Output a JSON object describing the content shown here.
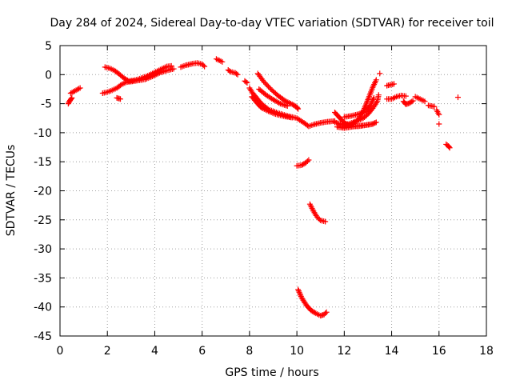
{
  "chart_data": {
    "type": "scatter",
    "title": "Day 284 of 2024, Sidereal Day-to-day VTEC variation (SDTVAR) for receiver toil",
    "xlabel": "GPS time / hours",
    "ylabel": "SDTVAR / TECUs",
    "xlim": [
      0,
      18
    ],
    "ylim": [
      -45,
      5
    ],
    "xticks": [
      0,
      2,
      4,
      6,
      8,
      10,
      12,
      14,
      16,
      18
    ],
    "yticks": [
      5,
      0,
      -5,
      -10,
      -15,
      -20,
      -25,
      -30,
      -35,
      -40,
      -45
    ],
    "grid": true,
    "marker": "+",
    "series_color": "#ff0000",
    "tracks": [
      {
        "name": "s1",
        "points": [
          [
            0.35,
            -5.0
          ],
          [
            0.4,
            -4.6
          ],
          [
            0.45,
            -4.3
          ],
          [
            0.5,
            -4.0
          ]
        ]
      },
      {
        "name": "s2",
        "points": [
          [
            0.45,
            -3.2
          ],
          [
            0.85,
            -2.3
          ]
        ]
      },
      {
        "name": "s3",
        "points": [
          [
            1.8,
            -3.2
          ],
          [
            2.0,
            -3.0
          ],
          [
            2.2,
            -2.7
          ],
          [
            2.4,
            -2.3
          ],
          [
            2.6,
            -1.7
          ],
          [
            2.8,
            -1.3
          ],
          [
            3.0,
            -1.2
          ],
          [
            3.3,
            -1.0
          ],
          [
            3.6,
            -0.8
          ],
          [
            3.9,
            -0.3
          ],
          [
            4.2,
            0.3
          ],
          [
            4.5,
            0.7
          ],
          [
            4.8,
            1.0
          ]
        ]
      },
      {
        "name": "s4",
        "points": [
          [
            1.9,
            1.3
          ],
          [
            2.1,
            1.1
          ],
          [
            2.3,
            0.7
          ],
          [
            2.5,
            0.1
          ],
          [
            2.7,
            -0.6
          ],
          [
            2.9,
            -1.1
          ],
          [
            3.1,
            -1.0
          ],
          [
            3.3,
            -0.8
          ],
          [
            3.5,
            -0.5
          ],
          [
            3.7,
            -0.2
          ],
          [
            3.9,
            0.2
          ],
          [
            4.1,
            0.6
          ],
          [
            4.3,
            1.0
          ],
          [
            4.5,
            1.4
          ],
          [
            4.7,
            1.5
          ]
        ]
      },
      {
        "name": "s5",
        "points": [
          [
            2.4,
            -4.0
          ],
          [
            2.55,
            -4.2
          ]
        ]
      },
      {
        "name": "s6",
        "points": [
          [
            5.1,
            1.3
          ],
          [
            5.3,
            1.6
          ],
          [
            5.6,
            1.9
          ],
          [
            5.8,
            2.0
          ],
          [
            6.0,
            1.8
          ],
          [
            6.1,
            1.4
          ]
        ]
      },
      {
        "name": "s7",
        "points": [
          [
            6.6,
            2.7
          ],
          [
            6.85,
            2.2
          ]
        ]
      },
      {
        "name": "s8",
        "points": [
          [
            7.1,
            0.8
          ],
          [
            7.2,
            0.5
          ],
          [
            7.4,
            0.3
          ],
          [
            7.5,
            0.0
          ]
        ]
      },
      {
        "name": "s9",
        "points": [
          [
            7.8,
            -1.1
          ],
          [
            7.9,
            -1.4
          ]
        ]
      },
      {
        "name": "s10",
        "points": [
          [
            8.0,
            -2.3
          ],
          [
            8.1,
            -3.0
          ],
          [
            8.3,
            -4.0
          ],
          [
            8.5,
            -5.0
          ],
          [
            8.8,
            -6.0
          ],
          [
            9.2,
            -6.6
          ],
          [
            9.6,
            -7.1
          ],
          [
            10.0,
            -7.5
          ],
          [
            10.3,
            -8.3
          ],
          [
            10.5,
            -8.9
          ],
          [
            10.7,
            -8.6
          ],
          [
            11.0,
            -8.3
          ],
          [
            11.3,
            -8.1
          ],
          [
            11.6,
            -8.0
          ]
        ]
      },
      {
        "name": "s11",
        "points": [
          [
            8.1,
            -3.8
          ],
          [
            8.3,
            -4.8
          ],
          [
            8.5,
            -5.7
          ],
          [
            8.8,
            -6.3
          ],
          [
            9.1,
            -6.8
          ],
          [
            9.5,
            -7.2
          ],
          [
            9.8,
            -7.4
          ]
        ]
      },
      {
        "name": "s12",
        "points": [
          [
            8.35,
            0.2
          ],
          [
            8.6,
            -1.2
          ],
          [
            8.9,
            -2.5
          ],
          [
            9.2,
            -3.6
          ],
          [
            9.5,
            -4.5
          ],
          [
            9.8,
            -5.1
          ],
          [
            10.0,
            -5.6
          ],
          [
            10.05,
            -5.9
          ]
        ]
      },
      {
        "name": "s13",
        "points": [
          [
            8.4,
            -2.5
          ],
          [
            8.7,
            -3.5
          ],
          [
            9.0,
            -4.3
          ],
          [
            9.3,
            -5.0
          ],
          [
            9.6,
            -5.4
          ]
        ]
      },
      {
        "name": "s14",
        "points": [
          [
            10.0,
            -15.7
          ],
          [
            10.2,
            -15.6
          ],
          [
            10.4,
            -15.1
          ],
          [
            10.5,
            -14.7
          ]
        ]
      },
      {
        "name": "s15",
        "points": [
          [
            10.55,
            -22.3
          ],
          [
            10.7,
            -23.5
          ],
          [
            10.85,
            -24.5
          ],
          [
            11.0,
            -25.1
          ],
          [
            11.2,
            -25.3
          ]
        ]
      },
      {
        "name": "s16",
        "points": [
          [
            10.05,
            -37.0
          ],
          [
            10.2,
            -38.4
          ],
          [
            10.4,
            -39.7
          ],
          [
            10.6,
            -40.6
          ],
          [
            10.8,
            -41.1
          ],
          [
            11.0,
            -41.5
          ],
          [
            11.15,
            -41.3
          ],
          [
            11.25,
            -40.9
          ]
        ]
      },
      {
        "name": "s17",
        "points": [
          [
            11.6,
            -6.5
          ],
          [
            11.8,
            -7.4
          ],
          [
            12.0,
            -8.3
          ],
          [
            12.3,
            -8.9
          ],
          [
            12.6,
            -8.9
          ],
          [
            12.9,
            -8.7
          ],
          [
            13.2,
            -8.5
          ],
          [
            13.35,
            -8.2
          ]
        ]
      },
      {
        "name": "s18",
        "points": [
          [
            11.6,
            -8.2
          ],
          [
            11.9,
            -8.6
          ],
          [
            12.2,
            -8.5
          ],
          [
            12.5,
            -8.0
          ],
          [
            12.8,
            -7.5
          ],
          [
            13.0,
            -6.8
          ],
          [
            13.2,
            -5.8
          ],
          [
            13.4,
            -4.6
          ],
          [
            13.45,
            -3.5
          ]
        ]
      },
      {
        "name": "s19",
        "points": [
          [
            12.0,
            -8.9
          ],
          [
            12.3,
            -8.6
          ],
          [
            12.6,
            -7.7
          ],
          [
            12.8,
            -6.3
          ],
          [
            13.0,
            -4.3
          ],
          [
            13.2,
            -2.2
          ],
          [
            13.35,
            -0.9
          ]
        ]
      },
      {
        "name": "s20",
        "points": [
          [
            12.0,
            -7.3
          ],
          [
            12.3,
            -7.1
          ],
          [
            12.6,
            -6.8
          ],
          [
            12.9,
            -6.3
          ],
          [
            13.1,
            -5.3
          ],
          [
            13.25,
            -4.0
          ]
        ]
      },
      {
        "name": "s21",
        "points": [
          [
            11.7,
            -9.0
          ],
          [
            12.0,
            -9.2
          ],
          [
            12.3,
            -9.0
          ],
          [
            12.6,
            -8.8
          ],
          [
            12.9,
            -8.7
          ],
          [
            13.2,
            -8.5
          ]
        ]
      },
      {
        "name": "s22",
        "points": [
          [
            13.5,
            0.2
          ]
        ]
      },
      {
        "name": "s23",
        "points": [
          [
            13.8,
            -1.9
          ],
          [
            14.1,
            -1.6
          ]
        ]
      },
      {
        "name": "s24",
        "points": [
          [
            13.8,
            -4.2
          ],
          [
            14.0,
            -4.2
          ],
          [
            14.2,
            -3.8
          ],
          [
            14.4,
            -3.6
          ],
          [
            14.6,
            -3.7
          ]
        ]
      },
      {
        "name": "s25",
        "points": [
          [
            14.5,
            -4.6
          ],
          [
            14.6,
            -5.1
          ],
          [
            14.75,
            -4.9
          ],
          [
            14.9,
            -4.5
          ]
        ]
      },
      {
        "name": "s26",
        "points": [
          [
            15.0,
            -3.8
          ],
          [
            15.2,
            -4.2
          ],
          [
            15.4,
            -4.6
          ]
        ]
      },
      {
        "name": "s27",
        "points": [
          [
            15.55,
            -5.3
          ],
          [
            15.8,
            -5.5
          ]
        ]
      },
      {
        "name": "s28",
        "points": [
          [
            15.9,
            -6.1
          ],
          [
            16.0,
            -6.9
          ]
        ]
      },
      {
        "name": "s29",
        "points": [
          [
            16.0,
            -8.5
          ]
        ]
      },
      {
        "name": "s30",
        "points": [
          [
            16.3,
            -12.0
          ],
          [
            16.4,
            -12.3
          ],
          [
            16.45,
            -12.6
          ]
        ]
      },
      {
        "name": "s31",
        "points": [
          [
            16.8,
            -3.9
          ]
        ]
      }
    ]
  }
}
